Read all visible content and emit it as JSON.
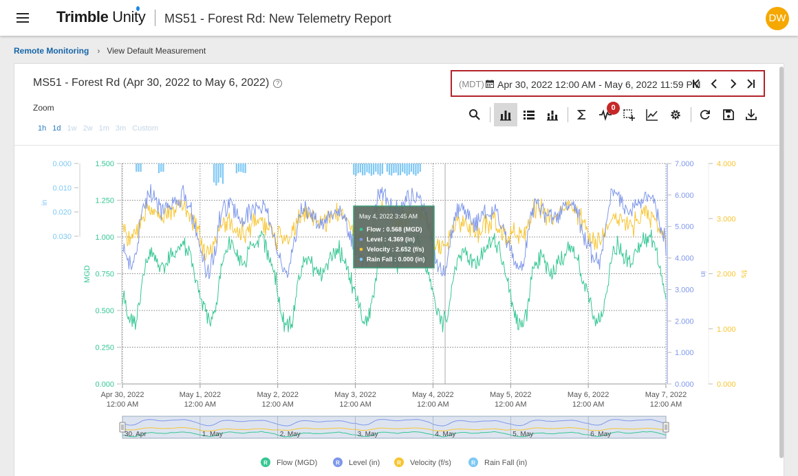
{
  "app": {
    "brand_bold": "Trimble",
    "brand_light": "Unity",
    "report_title": "MS51 - Forest Rd: New Telemetry Report",
    "user_initials": "DW"
  },
  "breadcrumb": {
    "root": "Remote Monitoring",
    "current": "View Default Measurement"
  },
  "card": {
    "title": "MS51 - Forest Rd (Apr 30, 2022 to May 6, 2022)",
    "zoom_label": "Zoom",
    "zoom_options": [
      "1h",
      "1d",
      "1w",
      "2w",
      "1m",
      "3m",
      "Custom"
    ],
    "timezone": "(MDT)",
    "date_range": "Apr 30, 2022 12:00 AM - May 6, 2022 11:59 PM",
    "notification_count": "0",
    "toolbar_icons": [
      "search-icon",
      "bar-chart-icon",
      "list-icon",
      "stacked-bar-icon",
      "sigma-icon",
      "pulse-icon",
      "select-region-icon",
      "line-chart-icon",
      "gear-icon",
      "refresh-icon",
      "save-icon",
      "download-icon"
    ]
  },
  "colors": {
    "flow": "#35c792",
    "level": "#7e97ea",
    "velocity": "#f7c531",
    "rainfall": "#7ec8f4",
    "highlight_border": "#b22229",
    "avatar": "#f5a800",
    "zoom_active": "#2c7cc0"
  },
  "chart_data": {
    "type": "line",
    "x_labels": [
      "Apr 30, 2022",
      "May 1, 2022",
      "May 2, 2022",
      "May 3, 2022",
      "May 4, 2022",
      "May 5, 2022",
      "May 6, 2022",
      "May 7, 2022"
    ],
    "x_time": "12:00 AM",
    "axes": {
      "rainfall_in": {
        "label": "in",
        "ticks": [
          "0.000",
          "0.010",
          "0.020",
          "0.030"
        ],
        "reversed": true
      },
      "flow_mgd": {
        "label": "MGD",
        "ticks": [
          "0.000",
          "0.250",
          "0.500",
          "0.750",
          "1.000",
          "1.250",
          "1.500"
        ],
        "ylim": [
          0,
          1.5
        ]
      },
      "level_in": {
        "label": "in",
        "ticks": [
          "0.000",
          "1.000",
          "2.000",
          "3.000",
          "4.000",
          "5.000",
          "6.000",
          "7.000"
        ],
        "ylim": [
          0,
          7
        ]
      },
      "velocity_fps": {
        "label": "f/s",
        "ticks": [
          "0.000",
          "1.000",
          "2.000",
          "3.000",
          "4.000"
        ],
        "ylim": [
          0,
          4
        ]
      }
    },
    "series": [
      {
        "name": "Flow (MGD)",
        "day_fraction": [
          0,
          0.042,
          0.083,
          0.125,
          0.167,
          0.208,
          0.25,
          0.292,
          0.333,
          0.375,
          0.417,
          0.458,
          0.5,
          0.542,
          0.583,
          0.625,
          0.667,
          0.708,
          0.75,
          0.792,
          0.833,
          0.875,
          0.917,
          0.958
        ],
        "daily_profile": [
          0.62,
          0.52,
          0.44,
          0.41,
          0.43,
          0.52,
          0.68,
          0.8,
          0.87,
          0.9,
          0.88,
          0.84,
          0.8,
          0.79,
          0.82,
          0.87,
          0.9,
          0.92,
          0.95,
          0.97,
          0.92,
          0.85,
          0.77,
          0.7
        ]
      },
      {
        "name": "Level (in)",
        "day_fraction": [
          0,
          0.042,
          0.083,
          0.125,
          0.167,
          0.208,
          0.25,
          0.292,
          0.333,
          0.375,
          0.417,
          0.458,
          0.5,
          0.542,
          0.583,
          0.625,
          0.667,
          0.708,
          0.75,
          0.792,
          0.833,
          0.875,
          0.917,
          0.958
        ],
        "daily_profile": [
          4.3,
          3.95,
          3.7,
          3.65,
          3.9,
          4.5,
          5.2,
          5.6,
          5.75,
          5.75,
          5.6,
          5.4,
          5.3,
          5.25,
          5.35,
          5.5,
          5.55,
          5.6,
          5.7,
          5.75,
          5.6,
          5.3,
          4.95,
          4.6
        ]
      },
      {
        "name": "Velocity (f/s)",
        "day_fraction": [
          0,
          0.042,
          0.083,
          0.125,
          0.167,
          0.208,
          0.25,
          0.292,
          0.333,
          0.375,
          0.417,
          0.458,
          0.5,
          0.542,
          0.583,
          0.625,
          0.667,
          0.708,
          0.75,
          0.792,
          0.833,
          0.875,
          0.917,
          0.958
        ],
        "daily_profile": [
          2.7,
          2.6,
          2.55,
          2.55,
          2.6,
          2.75,
          2.9,
          3.0,
          3.05,
          3.05,
          3.0,
          2.95,
          2.9,
          2.9,
          2.92,
          2.95,
          3.0,
          3.05,
          3.1,
          3.1,
          3.05,
          2.95,
          2.85,
          2.75
        ]
      },
      {
        "name": "Rain Fall (in)",
        "bars_day_ranges": [
          [
            0.17,
            0.24
          ],
          [
            0.46,
            0.54
          ],
          [
            1.17,
            1.29
          ],
          [
            1.46,
            1.58
          ],
          [
            2.97,
            3.34
          ],
          [
            3.4,
            3.83
          ]
        ],
        "values_in": [
          0.002,
          0.004,
          0.009,
          0.004,
          0.005,
          0.005
        ]
      }
    ],
    "tooltip": {
      "time": "May 4, 2022 3:45 AM",
      "rows": [
        {
          "label": "Flow : 0.568 (MGD)",
          "color": "#35c792"
        },
        {
          "label": "Level : 4.369 (in)",
          "color": "#7e97ea"
        },
        {
          "label": "Velocity : 2.652 (f/s)",
          "color": "#f7c531"
        },
        {
          "label": "Rain Fall : 0.000 (in)",
          "color": "#7ec8f4"
        }
      ]
    },
    "navigator_labels": [
      "30. Apr",
      "1. May",
      "2. May",
      "3. May",
      "4. May",
      "5. May",
      "6. May"
    ],
    "legend": [
      "Flow (MGD)",
      "Level (in)",
      "Velocity (f/s)",
      "Rain Fall (in)"
    ],
    "legend_marker": "R",
    "grid": true
  }
}
